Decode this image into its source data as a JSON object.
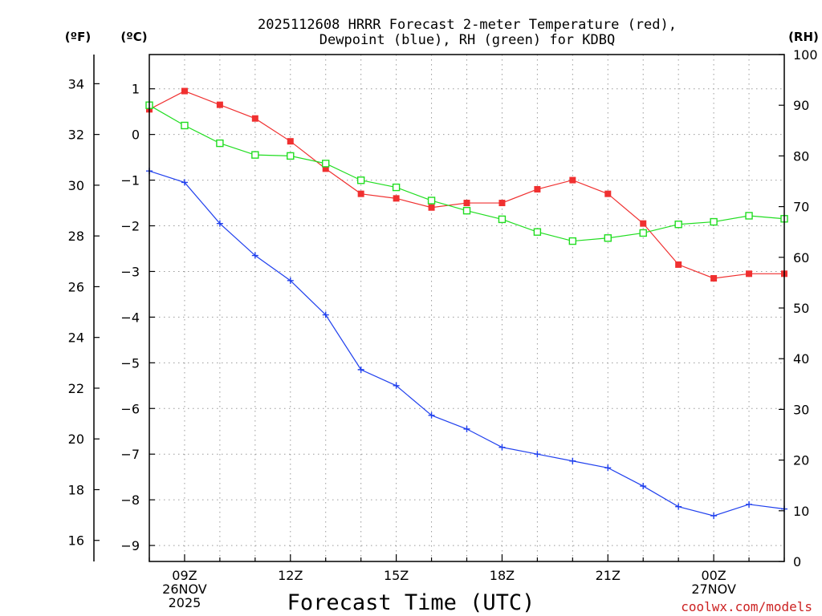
{
  "chart_data": {
    "type": "line",
    "title_line1": "2025112608 HRRR Forecast 2-meter Temperature (red),",
    "title_line2": "Dewpoint (blue), RH (green) for KDBQ",
    "xlabel": "Forecast Time (UTC)",
    "watermark": "coolwx.com/models",
    "units": {
      "left_f": "(ºF)",
      "left_c": "(ºC)",
      "right_rh": "(RH)"
    },
    "x_hours": [
      8,
      9,
      10,
      11,
      12,
      13,
      14,
      15,
      16,
      17,
      18,
      19,
      20,
      21,
      22,
      23,
      24,
      25,
      26
    ],
    "xlim": [
      8,
      26
    ],
    "x_ticks": [
      {
        "hour": 9,
        "lines": [
          "09Z",
          "26NOV",
          "2025"
        ]
      },
      {
        "hour": 12,
        "lines": [
          "12Z"
        ]
      },
      {
        "hour": 15,
        "lines": [
          "15Z"
        ]
      },
      {
        "hour": 18,
        "lines": [
          "18Z"
        ]
      },
      {
        "hour": 21,
        "lines": [
          "21Z"
        ]
      },
      {
        "hour": 24,
        "lines": [
          "00Z",
          "27NOV"
        ]
      }
    ],
    "celsius_axis": {
      "ylim": [
        -9.35,
        1.75
      ],
      "ticks": [
        1,
        0,
        -1,
        -2,
        -3,
        -4,
        -5,
        -6,
        -7,
        -8,
        -9
      ],
      "tick_labels": [
        "1",
        "0",
        "−1",
        "−2",
        "−3",
        "−4",
        "−5",
        "−6",
        "−7",
        "−8",
        "−9"
      ]
    },
    "fahrenheit_axis": {
      "ticks": [
        34,
        32,
        30,
        28,
        26,
        24,
        22,
        20,
        18,
        16
      ],
      "tick_labels": [
        "34",
        "32",
        "30",
        "28",
        "26",
        "24",
        "22",
        "20",
        "18",
        "16"
      ]
    },
    "rh_axis": {
      "ylim": [
        0,
        100
      ],
      "ticks": [
        100,
        90,
        80,
        70,
        60,
        50,
        40,
        30,
        20,
        10,
        0
      ],
      "tick_labels": [
        "100",
        "90",
        "80",
        "70",
        "60",
        "50",
        "40",
        "30",
        "20",
        "10",
        "0"
      ]
    },
    "series": [
      {
        "name": "2-meter Temperature",
        "color": "#f03030",
        "marker": "filled-square",
        "axis": "celsius",
        "values": [
          0.55,
          0.95,
          0.65,
          0.35,
          -0.15,
          -0.75,
          -1.3,
          -1.4,
          -1.6,
          -1.5,
          -1.5,
          -1.2,
          -1.0,
          -1.3,
          -1.95,
          -2.85,
          -3.15,
          -3.05,
          -3.05
        ]
      },
      {
        "name": "Dewpoint",
        "color": "#2040ee",
        "marker": "plus",
        "axis": "celsius",
        "values": [
          -0.8,
          -1.05,
          -1.95,
          -2.65,
          -3.2,
          -3.95,
          -5.15,
          -5.5,
          -6.15,
          -6.45,
          -6.85,
          -7.0,
          -7.15,
          -7.3,
          -7.7,
          -8.15,
          -8.35,
          -8.1,
          -8.2
        ]
      },
      {
        "name": "RH",
        "color": "#20dd20",
        "marker": "open-square",
        "axis": "rh",
        "values": [
          90,
          86,
          82.5,
          80.2,
          80,
          78.5,
          75.2,
          73.8,
          71.2,
          69.2,
          67.5,
          65,
          63.2,
          63.8,
          64.8,
          66.5,
          67,
          68.2,
          67.6
        ]
      }
    ]
  }
}
